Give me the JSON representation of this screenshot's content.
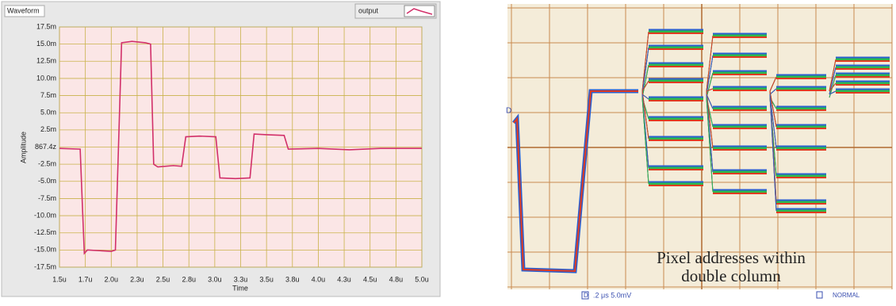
{
  "chart_data": {
    "type": "line",
    "title": "Waveform",
    "x_label": "Time",
    "y_label": "Amplitude",
    "x": [
      1.5e-06,
      1.7e-06,
      1.72e-06,
      1.74e-06,
      1.77e-06,
      2e-06,
      2.04e-06,
      2.07e-06,
      2.1e-06,
      2.2e-06,
      2.33e-06,
      2.38e-06,
      2.41e-06,
      2.45e-06,
      2.6e-06,
      2.68e-06,
      2.72e-06,
      2.85e-06,
      3.01e-06,
      3.05e-06,
      3.2e-06,
      3.34e-06,
      3.38e-06,
      3.5e-06,
      3.67e-06,
      3.71e-06,
      4e-06,
      4.3e-06,
      4.6e-06,
      5e-06
    ],
    "series": [
      {
        "name": "output",
        "color": "#d2306a",
        "values": [
          -0.0002,
          -0.0003,
          -0.008,
          -0.0155,
          -0.015,
          -0.0152,
          -0.015,
          0,
          0.0152,
          0.0154,
          0.0152,
          0.015,
          -0.0025,
          -0.0029,
          -0.0027,
          -0.0028,
          0.0015,
          0.0016,
          0.0015,
          -0.0045,
          -0.0046,
          -0.0045,
          0.0019,
          0.0018,
          0.0017,
          -0.0003,
          -0.0002,
          -0.0004,
          -0.0002,
          -0.0002
        ]
      }
    ],
    "xlim": [
      1.5e-06,
      5e-06
    ],
    "ylim": [
      -0.0175,
      0.0175
    ],
    "xticks": [
      {
        "value": 1.5e-06,
        "label": "1.5u"
      },
      {
        "value": 1.75e-06,
        "label": "1.7u"
      },
      {
        "value": 2e-06,
        "label": "2.0u"
      },
      {
        "value": 2.25e-06,
        "label": "2.3u"
      },
      {
        "value": 2.5e-06,
        "label": "2.5u"
      },
      {
        "value": 2.75e-06,
        "label": "2.8u"
      },
      {
        "value": 3e-06,
        "label": "3.0u"
      },
      {
        "value": 3.25e-06,
        "label": "3.3u"
      },
      {
        "value": 3.5e-06,
        "label": "3.5u"
      },
      {
        "value": 3.75e-06,
        "label": "3.8u"
      },
      {
        "value": 4e-06,
        "label": "4.0u"
      },
      {
        "value": 4.25e-06,
        "label": "4.3u"
      },
      {
        "value": 4.5e-06,
        "label": "4.5u"
      },
      {
        "value": 4.75e-06,
        "label": "4.8u"
      },
      {
        "value": 5e-06,
        "label": "5.0u"
      }
    ],
    "yticks": [
      {
        "value": 0.0175,
        "label": "17.5m"
      },
      {
        "value": 0.015,
        "label": "15.0m"
      },
      {
        "value": 0.0125,
        "label": "12.5m"
      },
      {
        "value": 0.01,
        "label": "10.0m"
      },
      {
        "value": 0.0075,
        "label": "7.5m"
      },
      {
        "value": 0.005,
        "label": "5.0m"
      },
      {
        "value": 0.0025,
        "label": "2.5m"
      },
      {
        "value": 8.674e-19,
        "label": "867.4z"
      },
      {
        "value": -0.0025,
        "label": "-2.5m"
      },
      {
        "value": -0.005,
        "label": "-5.0m"
      },
      {
        "value": -0.0075,
        "label": "-7.5m"
      },
      {
        "value": -0.01,
        "label": "-10.0m"
      },
      {
        "value": -0.0125,
        "label": "-12.5m"
      },
      {
        "value": -0.015,
        "label": "-15.0m"
      },
      {
        "value": -0.0175,
        "label": "-17.5m"
      }
    ],
    "grid": true
  },
  "scope": {
    "channel": "D",
    "annotation": [
      "Pixel addresses within",
      "double column"
    ],
    "status": ".2 μs 5.0mV",
    "mode": "NORMAL"
  }
}
